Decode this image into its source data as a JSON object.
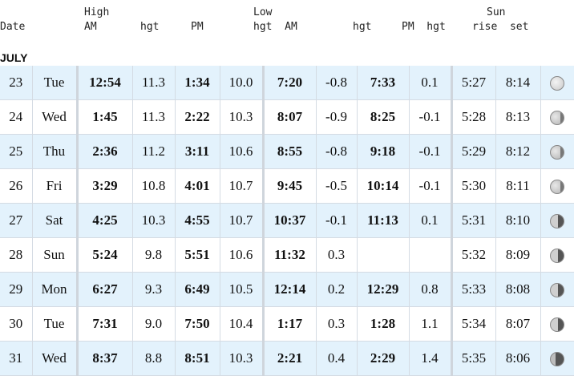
{
  "header": {
    "date": "Date",
    "high": "High",
    "am": "AM",
    "hgt1": "hgt",
    "pm": "PM",
    "low": "Low",
    "hgt_am": "hgt  AM",
    "hgt2": "hgt",
    "pm_hgt": "PM  hgt",
    "sun": "Sun",
    "rise_set": "rise  set"
  },
  "month": "JULY",
  "rows": [
    {
      "date": "23",
      "day": "Tue",
      "h_am": "12:54",
      "h_am_hgt": "11.3",
      "h_pm": "1:34",
      "h_pm_hgt": "10.0",
      "l_am": "7:20",
      "l_am_hgt": "-0.8",
      "l_pm": "7:33",
      "l_pm_hgt": "0.1",
      "rise": "5:27",
      "set": "8:14",
      "moon": "full-moon-icon"
    },
    {
      "date": "24",
      "day": "Wed",
      "h_am": "1:45",
      "h_am_hgt": "11.3",
      "h_pm": "2:22",
      "h_pm_hgt": "10.3",
      "l_am": "8:07",
      "l_am_hgt": "-0.9",
      "l_pm": "8:25",
      "l_pm_hgt": "-0.1",
      "rise": "5:28",
      "set": "8:13",
      "moon": "waning-gibbous-moon-icon"
    },
    {
      "date": "25",
      "day": "Thu",
      "h_am": "2:36",
      "h_am_hgt": "11.2",
      "h_pm": "3:11",
      "h_pm_hgt": "10.6",
      "l_am": "8:55",
      "l_am_hgt": "-0.8",
      "l_pm": "9:18",
      "l_pm_hgt": "-0.1",
      "rise": "5:29",
      "set": "8:12",
      "moon": "waning-gibbous-moon-icon"
    },
    {
      "date": "26",
      "day": "Fri",
      "h_am": "3:29",
      "h_am_hgt": "10.8",
      "h_pm": "4:01",
      "h_pm_hgt": "10.7",
      "l_am": "9:45",
      "l_am_hgt": "-0.5",
      "l_pm": "10:14",
      "l_pm_hgt": "-0.1",
      "rise": "5:30",
      "set": "8:11",
      "moon": "waning-gibbous-moon-icon"
    },
    {
      "date": "27",
      "day": "Sat",
      "h_am": "4:25",
      "h_am_hgt": "10.3",
      "h_pm": "4:55",
      "h_pm_hgt": "10.7",
      "l_am": "10:37",
      "l_am_hgt": "-0.1",
      "l_pm": "11:13",
      "l_pm_hgt": "0.1",
      "rise": "5:31",
      "set": "8:10",
      "moon": "last-quarter-moon-icon"
    },
    {
      "date": "28",
      "day": "Sun",
      "h_am": "5:24",
      "h_am_hgt": "9.8",
      "h_pm": "5:51",
      "h_pm_hgt": "10.6",
      "l_am": "11:32",
      "l_am_hgt": "0.3",
      "l_pm": "",
      "l_pm_hgt": "",
      "rise": "5:32",
      "set": "8:09",
      "moon": "last-quarter-moon-icon"
    },
    {
      "date": "29",
      "day": "Mon",
      "h_am": "6:27",
      "h_am_hgt": "9.3",
      "h_pm": "6:49",
      "h_pm_hgt": "10.5",
      "l_am": "12:14",
      "l_am_hgt": "0.2",
      "l_pm": "12:29",
      "l_pm_hgt": "0.8",
      "rise": "5:33",
      "set": "8:08",
      "moon": "last-quarter-moon-icon"
    },
    {
      "date": "30",
      "day": "Tue",
      "h_am": "7:31",
      "h_am_hgt": "9.0",
      "h_pm": "7:50",
      "h_pm_hgt": "10.4",
      "l_am": "1:17",
      "l_am_hgt": "0.3",
      "l_pm": "1:28",
      "l_pm_hgt": "1.1",
      "rise": "5:34",
      "set": "8:07",
      "moon": "last-quarter-moon-icon"
    },
    {
      "date": "31",
      "day": "Wed",
      "h_am": "8:37",
      "h_am_hgt": "8.8",
      "h_pm": "8:51",
      "h_pm_hgt": "10.3",
      "l_am": "2:21",
      "l_am_hgt": "0.4",
      "l_pm": "2:29",
      "l_pm_hgt": "1.4",
      "rise": "5:35",
      "set": "8:06",
      "moon": "waning-crescent-moon-icon"
    }
  ]
}
